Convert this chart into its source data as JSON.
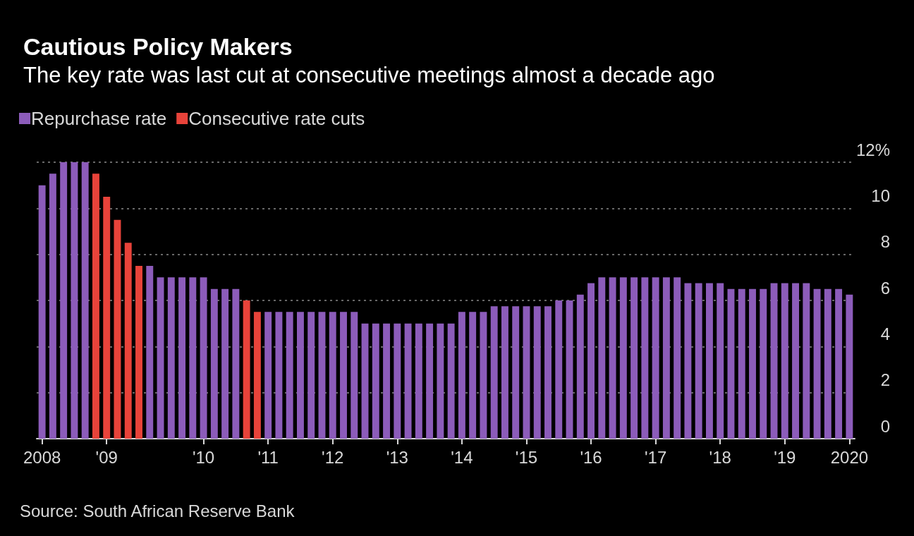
{
  "chart_data": {
    "type": "bar",
    "title": "Cautious Policy Makers",
    "subtitle": "The key rate was last cut at consecutive meetings almost a decade ago",
    "categories": [
      "2008",
      null,
      null,
      null,
      null,
      null,
      "'09",
      null,
      null,
      null,
      null,
      null,
      null,
      null,
      null,
      "'10",
      null,
      null,
      null,
      null,
      null,
      "'11",
      null,
      null,
      null,
      null,
      null,
      "'12",
      null,
      null,
      null,
      null,
      null,
      "'13",
      null,
      null,
      null,
      null,
      null,
      "'14",
      null,
      null,
      null,
      null,
      null,
      "'15",
      null,
      null,
      null,
      null,
      null,
      "'16",
      null,
      null,
      null,
      null,
      null,
      "'17",
      null,
      null,
      null,
      null,
      null,
      "'18",
      null,
      null,
      null,
      null,
      null,
      "'19",
      null,
      null,
      null,
      null,
      null,
      "2020"
    ],
    "series": [
      {
        "name": "Repurchase rate",
        "color": "#8c5cba",
        "values": [
          11,
          11.5,
          12,
          12,
          12,
          null,
          null,
          null,
          null,
          null,
          7.5,
          7,
          7,
          7,
          7,
          7,
          6.5,
          6.5,
          6.5,
          null,
          null,
          5.5,
          5.5,
          5.5,
          5.5,
          5.5,
          5.5,
          5.5,
          5.5,
          5.5,
          5,
          5,
          5,
          5,
          5,
          5,
          5,
          5,
          5,
          5.5,
          5.5,
          5.5,
          5.75,
          5.75,
          5.75,
          5.75,
          5.75,
          5.75,
          6,
          6,
          6.25,
          6.75,
          7,
          7,
          7,
          7,
          7,
          7,
          7,
          7,
          6.75,
          6.75,
          6.75,
          6.75,
          6.5,
          6.5,
          6.5,
          6.5,
          6.75,
          6.75,
          6.75,
          6.75,
          6.5,
          6.5,
          6.5,
          6.25
        ]
      },
      {
        "name": "Consecutive rate cuts",
        "color": "#e8433a",
        "values": [
          null,
          null,
          null,
          null,
          null,
          11.5,
          10.5,
          9.5,
          8.5,
          7.5,
          null,
          null,
          null,
          null,
          null,
          null,
          null,
          null,
          null,
          6,
          5.5,
          null,
          null,
          null,
          null,
          null,
          null,
          null,
          null,
          null,
          null,
          null,
          null,
          null,
          null,
          null,
          null,
          null,
          null,
          null,
          null,
          null,
          null,
          null,
          null,
          null,
          null,
          null,
          null,
          null,
          null,
          null,
          null,
          null,
          null,
          null,
          null,
          null,
          null,
          null,
          null,
          null,
          null,
          null,
          null,
          null,
          null,
          null,
          null,
          null,
          null,
          null,
          null,
          null,
          null,
          null
        ]
      }
    ],
    "stacked": true,
    "ylim": [
      0,
      12
    ],
    "yticks": [
      0,
      2,
      4,
      6,
      8,
      10,
      {
        "value": 12,
        "label": "12%"
      }
    ],
    "grid": "y",
    "legend": "top left",
    "annotations": [
      "Source: South African Reserve Bank"
    ]
  }
}
